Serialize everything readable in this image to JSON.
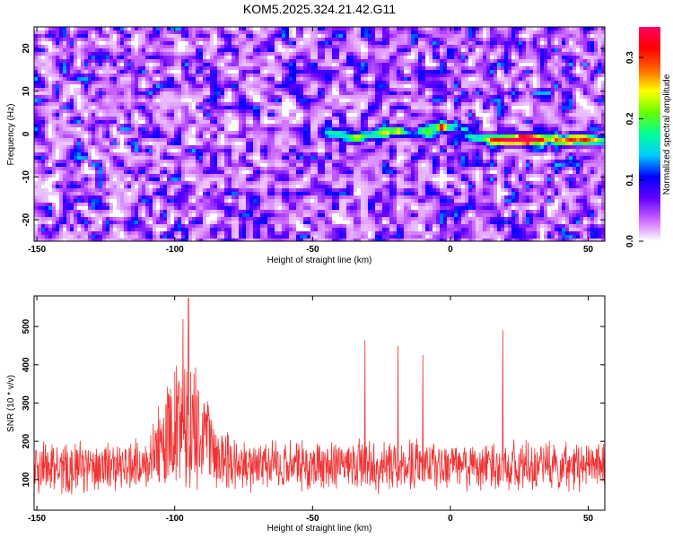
{
  "title": "KOM5.2025.324.21.42.G11",
  "chart_data": [
    {
      "type": "heatmap",
      "xlabel": "Height of straight line (km)",
      "ylabel": "Frequency (Hz)",
      "xlim": [
        -151,
        56
      ],
      "ylim": [
        -25,
        25
      ],
      "xticks": [
        -150,
        -100,
        -50,
        0,
        50
      ],
      "yticks": [
        -20,
        -10,
        0,
        10,
        20
      ],
      "colorbar": {
        "label": "Normalized spectral amplitude",
        "range": [
          0,
          0.35
        ],
        "ticks": [
          "0.0",
          "0.1",
          "0.2",
          "0.3"
        ],
        "stops": [
          "#ffffff",
          "#cc66ff",
          "#6600ff",
          "#0000ff",
          "#00ccff",
          "#00ff99",
          "#66ff00",
          "#ffff00",
          "#ff6600",
          "#ff0000",
          "#ff0066"
        ]
      },
      "ridge": {
        "description_of_signal": "narrow band near 0 Hz",
        "points": [
          {
            "x": -42,
            "y": 0.5,
            "a": 0.14
          },
          {
            "x": -35,
            "y": -0.5,
            "a": 0.2
          },
          {
            "x": -27,
            "y": 0.5,
            "a": 0.12
          },
          {
            "x": -20,
            "y": 1,
            "a": 0.2
          },
          {
            "x": -10,
            "y": 0.5,
            "a": 0.12
          },
          {
            "x": -5,
            "y": 2,
            "a": 0.16
          },
          {
            "x": 0,
            "y": 2,
            "a": 0.12
          },
          {
            "x": 8,
            "y": -0.5,
            "a": 0.14
          },
          {
            "x": 15,
            "y": -1,
            "a": 0.16
          },
          {
            "x": 20,
            "y": -1,
            "a": 0.2
          },
          {
            "x": 26,
            "y": -1,
            "a": 0.34
          },
          {
            "x": 30,
            "y": -0.5,
            "a": 0.18
          },
          {
            "x": 36,
            "y": -1,
            "a": 0.14
          },
          {
            "x": 42,
            "y": -1,
            "a": 0.16
          },
          {
            "x": 48,
            "y": -1,
            "a": 0.18
          },
          {
            "x": 53,
            "y": -1,
            "a": 0.16
          }
        ]
      }
    },
    {
      "type": "line",
      "xlabel": "Height of straight line (km)",
      "ylabel": "SNR (10 * v/v)",
      "xlim": [
        -151,
        56
      ],
      "ylim": [
        20,
        580
      ],
      "xticks": [
        -150,
        -100,
        -50,
        0,
        50
      ],
      "yticks": [
        100,
        200,
        300,
        400,
        500
      ],
      "color": "#f03232",
      "features": [
        {
          "x": -95,
          "peak": 575
        },
        {
          "x": -97,
          "peak": 520
        },
        {
          "x": -31,
          "peak": 465
        },
        {
          "x": 19,
          "peak": 490
        },
        {
          "x": -19,
          "peak": 450
        },
        {
          "x": -10,
          "peak": 425
        }
      ]
    }
  ]
}
